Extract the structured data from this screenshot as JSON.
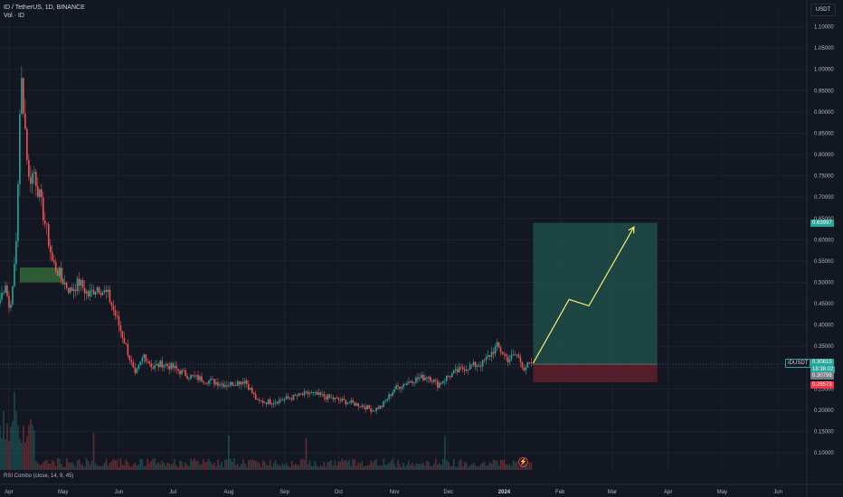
{
  "header": {
    "symbol_line": "ID / TetherUS, 1D, BINANCE",
    "volume_line": "Vol · ID",
    "currency_button": "USDT"
  },
  "indicator": {
    "label": "RSI Combo (close, 14, 9, 45)"
  },
  "price_tags": {
    "target": "0.63997",
    "symbol": "IDUSDT",
    "current": "0.30815",
    "countdown": "18:38:02",
    "entry": "0.30798",
    "stop": "0.26573"
  },
  "colors": {
    "background": "#131722",
    "up": "#26a69a",
    "down": "#ef5350",
    "target_zone": "#1f4e4a",
    "stop_zone": "#5b1f2b",
    "arrow": "#ffeb6b",
    "grid": "#1e222d"
  },
  "chart_data": {
    "type": "candlestick",
    "title": "ID / TetherUS, 1D, BINANCE",
    "y_axis": {
      "ticks": [
        "0.10000",
        "0.15000",
        "0.20000",
        "0.25000",
        "0.30000",
        "0.35000",
        "0.40000",
        "0.45000",
        "0.50000",
        "0.55000",
        "0.60000",
        "0.65000",
        "0.70000",
        "0.75000",
        "0.80000",
        "0.85000",
        "0.90000",
        "0.95000",
        "1.00000",
        "1.05000",
        "1.10000"
      ],
      "range": [
        0.06,
        1.15
      ],
      "scale": "linear"
    },
    "x_axis": {
      "ticks": [
        "Apr",
        "May",
        "Jun",
        "Jul",
        "Aug",
        "Sep",
        "Oct",
        "Nov",
        "Dec",
        "2024",
        "Feb",
        "Mar",
        "Apr",
        "May",
        "Jun"
      ]
    },
    "series_anchor_close": [
      [
        "2023-03-27",
        0.46
      ],
      [
        "2023-03-30",
        0.5
      ],
      [
        "2023-04-01",
        0.44
      ],
      [
        "2023-04-03",
        0.48
      ],
      [
        "2023-04-05",
        0.6
      ],
      [
        "2023-04-07",
        0.88
      ],
      [
        "2023-04-08",
        0.97
      ],
      [
        "2023-04-09",
        0.92
      ],
      [
        "2023-04-10",
        0.86
      ],
      [
        "2023-04-12",
        0.74
      ],
      [
        "2023-04-15",
        0.76
      ],
      [
        "2023-04-18",
        0.7
      ],
      [
        "2023-04-22",
        0.62
      ],
      [
        "2023-04-25",
        0.55
      ],
      [
        "2023-04-30",
        0.51
      ],
      [
        "2023-05-05",
        0.48
      ],
      [
        "2023-05-10",
        0.5
      ],
      [
        "2023-05-15",
        0.47
      ],
      [
        "2023-05-20",
        0.49
      ],
      [
        "2023-05-26",
        0.47
      ],
      [
        "2023-06-01",
        0.4
      ],
      [
        "2023-06-05",
        0.35
      ],
      [
        "2023-06-10",
        0.28
      ],
      [
        "2023-06-15",
        0.33
      ],
      [
        "2023-06-20",
        0.3
      ],
      [
        "2023-06-25",
        0.31
      ],
      [
        "2023-07-01",
        0.3
      ],
      [
        "2023-07-10",
        0.28
      ],
      [
        "2023-07-20",
        0.27
      ],
      [
        "2023-07-31",
        0.26
      ],
      [
        "2023-08-10",
        0.27
      ],
      [
        "2023-08-17",
        0.22
      ],
      [
        "2023-08-25",
        0.22
      ],
      [
        "2023-09-05",
        0.23
      ],
      [
        "2023-09-15",
        0.24
      ],
      [
        "2023-09-25",
        0.23
      ],
      [
        "2023-10-05",
        0.22
      ],
      [
        "2023-10-15",
        0.21
      ],
      [
        "2023-10-20",
        0.2
      ],
      [
        "2023-10-25",
        0.21
      ],
      [
        "2023-11-01",
        0.25
      ],
      [
        "2023-11-10",
        0.27
      ],
      [
        "2023-11-20",
        0.28
      ],
      [
        "2023-11-25",
        0.26
      ],
      [
        "2023-12-01",
        0.28
      ],
      [
        "2023-12-10",
        0.3
      ],
      [
        "2023-12-20",
        0.31
      ],
      [
        "2023-12-28",
        0.35
      ],
      [
        "2024-01-03",
        0.32
      ],
      [
        "2024-01-08",
        0.33
      ],
      [
        "2024-01-12",
        0.3
      ],
      [
        "2024-01-16",
        0.31
      ]
    ],
    "position": {
      "entry": 0.30798,
      "target": 0.63997,
      "stop": 0.26573,
      "start_date": "2024-01-17",
      "end_date": "2024-03-26"
    },
    "projection_path": [
      [
        "2024-01-17",
        0.31
      ],
      [
        "2024-02-06",
        0.46
      ],
      [
        "2024-02-17",
        0.445
      ],
      [
        "2024-03-13",
        0.63
      ]
    ],
    "demand_zone": {
      "start_date": "2023-04-07",
      "end_date": "2023-05-01",
      "top": 0.535,
      "bottom": 0.5
    },
    "rsi_indicator": "RSI Combo (close, 14, 9, 45)",
    "grid": true
  }
}
